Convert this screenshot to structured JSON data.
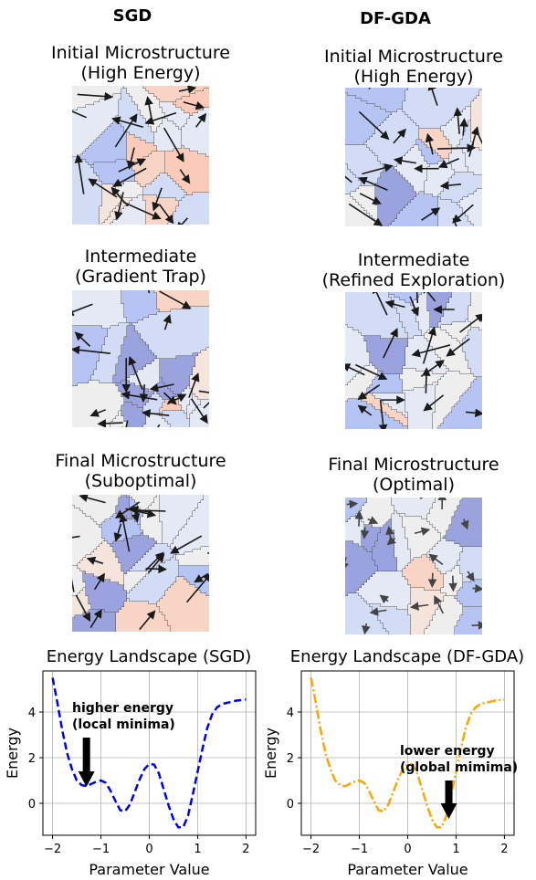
{
  "columns": [
    "SGD",
    "DF-GDA"
  ],
  "panels": {
    "sgd": [
      {
        "line1": "Initial Microstructure",
        "line2": "(High Energy)"
      },
      {
        "line1": "Intermediate",
        "line2": "(Gradient Trap)"
      },
      {
        "line1": "Final Microstructure",
        "line2": "(Suboptimal)"
      }
    ],
    "dfgda": [
      {
        "line1": "Initial Microstructure",
        "line2": "(High Energy)"
      },
      {
        "line1": "Intermediate",
        "line2": "(Refined Exploration)"
      },
      {
        "line1": "Final Microstructure",
        "line2": "(Optimal)"
      }
    ]
  },
  "colors": {
    "sgd_line": "#0000ee",
    "dfgda_line": "#ffa500",
    "cell_palette": [
      "#9aa3dd",
      "#b5c4f2",
      "#d2dcf4",
      "#e4e9f3",
      "#eeeeee",
      "#f4e4dc",
      "#f7d4c4",
      "#f9cbb8"
    ]
  },
  "chart_data": [
    {
      "type": "line",
      "title": "Energy Landscape (SGD)",
      "xlabel": "Parameter Value",
      "ylabel": "Energy",
      "xlim": [
        -2.2,
        2.2
      ],
      "ylim": [
        -1.4,
        5.8
      ],
      "xticks": [
        -2,
        -1,
        0,
        1,
        2
      ],
      "yticks": [
        0,
        2,
        4
      ],
      "grid": true,
      "line_style": "dashed",
      "x": [
        -2.0,
        -1.9,
        -1.8,
        -1.7,
        -1.6,
        -1.5,
        -1.4,
        -1.3,
        -1.2,
        -1.1,
        -1.0,
        -0.9,
        -0.8,
        -0.7,
        -0.6,
        -0.5,
        -0.4,
        -0.3,
        -0.2,
        -0.1,
        0.0,
        0.1,
        0.2,
        0.3,
        0.4,
        0.5,
        0.6,
        0.7,
        0.8,
        0.9,
        1.0,
        1.1,
        1.2,
        1.3,
        1.4,
        1.5,
        1.6,
        1.7,
        1.8,
        1.9,
        2.0
      ],
      "y": [
        5.5,
        4.4,
        3.2,
        2.2,
        1.5,
        1.0,
        0.8,
        0.75,
        0.85,
        0.95,
        1.0,
        0.9,
        0.55,
        0.1,
        -0.3,
        -0.35,
        -0.05,
        0.5,
        1.05,
        1.5,
        1.72,
        1.7,
        1.3,
        0.6,
        -0.1,
        -0.7,
        -1.05,
        -1.05,
        -0.55,
        0.4,
        1.4,
        2.4,
        3.3,
        3.9,
        4.2,
        4.35,
        4.4,
        4.45,
        4.5,
        4.52,
        4.55
      ],
      "annotation": {
        "line1": "higher energy",
        "line2": "(local minima)",
        "x": -1.3,
        "y": 0.8
      }
    },
    {
      "type": "line",
      "title": "Energy Landscape (DF-GDA)",
      "xlabel": "Parameter Value",
      "ylabel": "Energy",
      "xlim": [
        -2.2,
        2.2
      ],
      "ylim": [
        -1.4,
        5.8
      ],
      "xticks": [
        -2,
        -1,
        0,
        1,
        2
      ],
      "yticks": [
        0,
        2,
        4
      ],
      "grid": true,
      "line_style": "dashdot",
      "x": [
        -2.0,
        -1.9,
        -1.8,
        -1.7,
        -1.6,
        -1.5,
        -1.4,
        -1.3,
        -1.2,
        -1.1,
        -1.0,
        -0.9,
        -0.8,
        -0.7,
        -0.6,
        -0.5,
        -0.4,
        -0.3,
        -0.2,
        -0.1,
        0.0,
        0.1,
        0.2,
        0.3,
        0.4,
        0.5,
        0.6,
        0.7,
        0.8,
        0.9,
        1.0,
        1.1,
        1.2,
        1.3,
        1.4,
        1.5,
        1.6,
        1.7,
        1.8,
        1.9,
        2.0
      ],
      "y": [
        5.5,
        4.4,
        3.2,
        2.2,
        1.5,
        1.0,
        0.8,
        0.75,
        0.85,
        0.95,
        1.0,
        0.9,
        0.55,
        0.1,
        -0.3,
        -0.35,
        -0.05,
        0.5,
        1.05,
        1.5,
        1.72,
        1.7,
        1.3,
        0.6,
        -0.1,
        -0.7,
        -1.05,
        -1.05,
        -0.55,
        0.4,
        1.4,
        2.4,
        3.3,
        3.9,
        4.2,
        4.35,
        4.4,
        4.45,
        4.5,
        4.52,
        4.55
      ],
      "annotation": {
        "line1": "lower energy",
        "line2": "(global mimima)",
        "x": 0.85,
        "y": -0.6
      }
    }
  ]
}
